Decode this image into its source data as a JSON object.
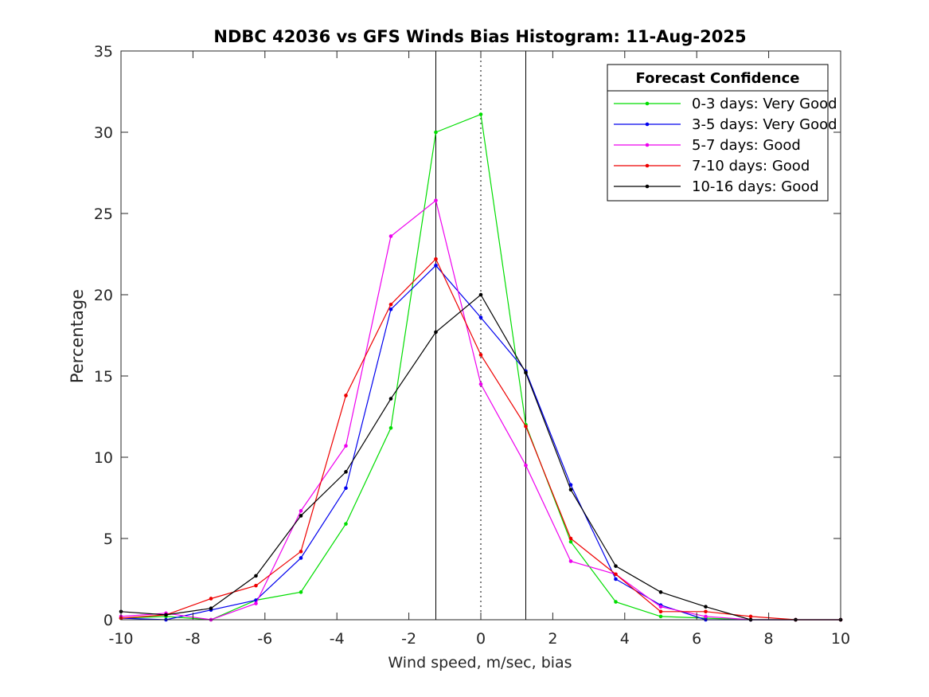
{
  "chart_data": {
    "type": "line",
    "title": "NDBC 42036 vs GFS Winds Bias Histogram: 11-Aug-2025",
    "xlabel": "Wind speed, m/sec, bias",
    "ylabel": "Percentage",
    "xlim": [
      -10,
      10
    ],
    "ylim": [
      0,
      35
    ],
    "xticks": [
      -10,
      -8,
      -6,
      -4,
      -2,
      0,
      2,
      4,
      6,
      8,
      10
    ],
    "yticks": [
      0,
      5,
      10,
      15,
      20,
      25,
      30,
      35
    ],
    "grid": false,
    "reference_lines": {
      "solid": [
        -1.25,
        1.25
      ],
      "dotted": [
        0
      ]
    },
    "legend": {
      "title": "Forecast Confidence",
      "placement": "top-right"
    },
    "x": [
      -10,
      -8.75,
      -7.5,
      -6.25,
      -5,
      -3.75,
      -2.5,
      -1.25,
      0,
      1.25,
      2.5,
      3.75,
      5,
      6.25,
      7.5,
      8.75,
      10
    ],
    "series": [
      {
        "name": "0-3 days: Very Good",
        "color": "#00dd00",
        "values": [
          0.1,
          0.2,
          0.0,
          1.2,
          1.7,
          5.9,
          11.8,
          30.0,
          31.1,
          12.0,
          4.8,
          1.1,
          0.2,
          0.1,
          0.0,
          0.0,
          0.0
        ]
      },
      {
        "name": "3-5 days: Very Good",
        "color": "#0000ee",
        "values": [
          0.1,
          0.0,
          0.6,
          1.2,
          3.8,
          8.1,
          19.1,
          21.8,
          18.6,
          15.3,
          8.3,
          2.5,
          0.9,
          0.0,
          0.0,
          0.0,
          0.0
        ]
      },
      {
        "name": "5-7 days: Good",
        "color": "#ee00ee",
        "values": [
          0.2,
          0.4,
          0.0,
          1.0,
          6.7,
          10.7,
          23.6,
          25.8,
          14.5,
          9.5,
          3.6,
          2.8,
          0.8,
          0.2,
          0.0,
          0.0,
          0.0
        ]
      },
      {
        "name": "7-10 days: Good",
        "color": "#ee0000",
        "values": [
          0.1,
          0.3,
          1.3,
          2.1,
          4.2,
          13.8,
          19.4,
          22.2,
          16.3,
          11.9,
          5.0,
          2.8,
          0.5,
          0.5,
          0.2,
          0.0,
          0.0
        ]
      },
      {
        "name": "10-16 days: Good",
        "color": "#000000",
        "values": [
          0.5,
          0.3,
          0.7,
          2.7,
          6.4,
          9.1,
          13.6,
          17.7,
          20.0,
          15.2,
          8.0,
          3.3,
          1.7,
          0.8,
          0.0,
          0.0,
          0.0
        ]
      }
    ]
  }
}
